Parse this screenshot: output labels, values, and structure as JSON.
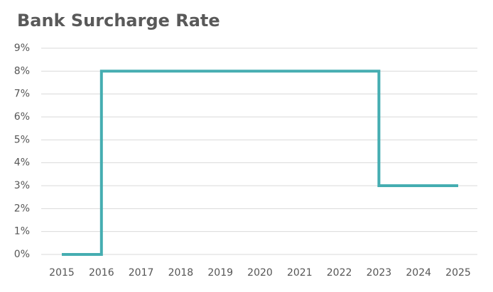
{
  "chart_data": {
    "type": "line",
    "step": "post",
    "title": "Bank Surcharge Rate",
    "categories": [
      "2015",
      "2016",
      "2017",
      "2018",
      "2019",
      "2020",
      "2021",
      "2022",
      "2023",
      "2024",
      "2025"
    ],
    "series": [
      {
        "color": "#45adb1",
        "values": [
          0,
          8,
          8,
          8,
          8,
          8,
          8,
          8,
          3,
          3,
          3
        ]
      }
    ],
    "ylim": [
      0,
      9
    ],
    "yticks": [
      {
        "value": 0,
        "label": "0%"
      },
      {
        "value": 1,
        "label": "1%"
      },
      {
        "value": 2,
        "label": "2%"
      },
      {
        "value": 3,
        "label": "3%"
      },
      {
        "value": 4,
        "label": "4%"
      },
      {
        "value": 5,
        "label": "5%"
      },
      {
        "value": 6,
        "label": "6%"
      },
      {
        "value": 7,
        "label": "7%"
      },
      {
        "value": 8,
        "label": "8%"
      },
      {
        "value": 9,
        "label": "9%"
      }
    ],
    "grid": true
  }
}
